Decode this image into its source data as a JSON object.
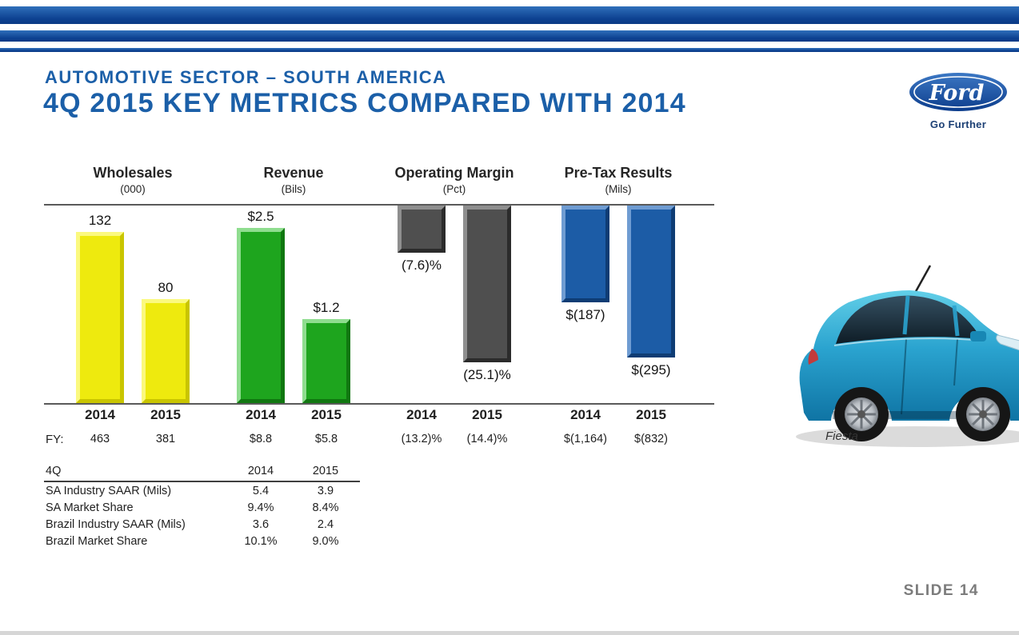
{
  "header": {
    "eyebrow": "AUTOMOTIVE SECTOR – SOUTH AMERICA",
    "title": "4Q 2015 KEY METRICS COMPARED WITH 2014",
    "accent_color": "#1b5fa8"
  },
  "logo": {
    "brand": "Ford",
    "tagline": "Go Further"
  },
  "chart_data": {
    "type": "bar",
    "categories": [
      "2014",
      "2015"
    ],
    "fy_label": "FY:",
    "layout": "four small-multiple bar pairs; positive bars rise from bottom baseline, negative bars hang from top baseline",
    "groups": [
      {
        "title": "Wholesales",
        "subtitle": "(000)",
        "direction": "up",
        "color": "#eeea0e",
        "values": [
          132,
          80
        ],
        "value_labels": [
          "132",
          "80"
        ],
        "fy_values": [
          "463",
          "381"
        ]
      },
      {
        "title": "Revenue",
        "subtitle": "(Bils)",
        "direction": "up",
        "color": "#1ea51e",
        "values": [
          2.5,
          1.2
        ],
        "value_labels": [
          "$2.5",
          "$1.2"
        ],
        "fy_values": [
          "$8.8",
          "$5.8"
        ]
      },
      {
        "title": "Operating Margin",
        "subtitle": "(Pct)",
        "direction": "down",
        "color": "#4f4f4f",
        "values": [
          -7.6,
          -25.1
        ],
        "value_labels": [
          "(7.6)%",
          "(25.1)%"
        ],
        "fy_values": [
          "(13.2)%",
          "(14.4)%"
        ]
      },
      {
        "title": "Pre-Tax Results",
        "subtitle": "(Mils)",
        "direction": "down",
        "color": "#1c5ca6",
        "values": [
          -187,
          -295
        ],
        "value_labels": [
          "$(187)",
          "$(295)"
        ],
        "fy_values": [
          "$(1,164)",
          "$(832)"
        ]
      }
    ]
  },
  "quarter_table": {
    "headers": [
      "4Q",
      "2014",
      "2015"
    ],
    "rows": [
      {
        "label": "SA Industry SAAR (Mils)",
        "y2014": "5.4",
        "y2015": "3.9"
      },
      {
        "label": "SA Market Share",
        "y2014": "9.4%",
        "y2015": "8.4%"
      },
      {
        "label": "Brazil Industry SAAR (Mils)",
        "y2014": "3.6",
        "y2015": "2.4"
      },
      {
        "label": "Brazil Market Share",
        "y2014": "10.1%",
        "y2015": "9.0%"
      }
    ]
  },
  "car": {
    "caption": "Fiesta"
  },
  "footer": {
    "slide_label": "SLIDE 14"
  }
}
